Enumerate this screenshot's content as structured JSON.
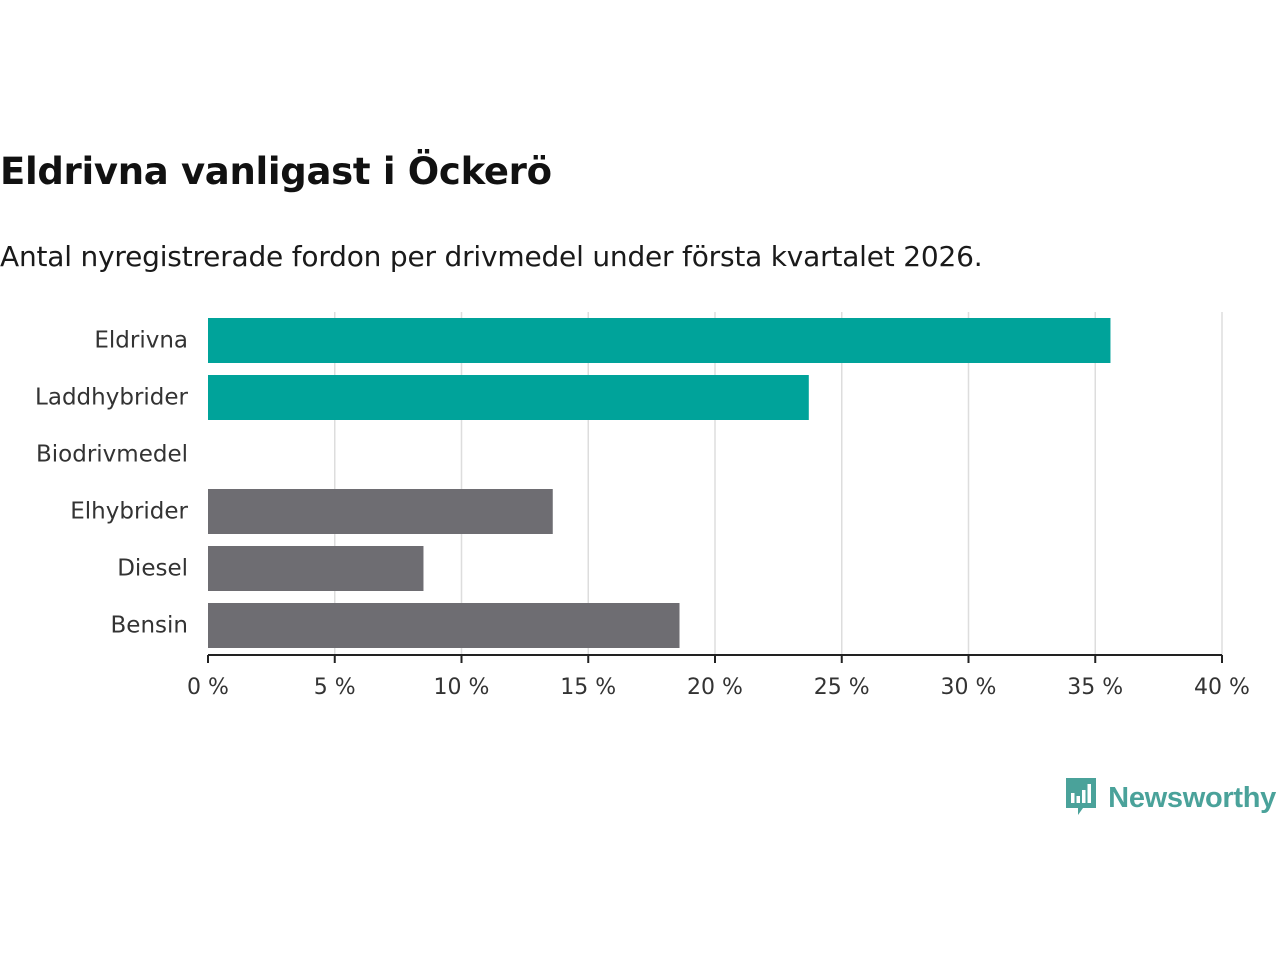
{
  "header": {
    "title": "Eldrivna vanligast i Öckerö",
    "subtitle": "Antal nyregistrerade fordon per drivmedel under första kvartalet 2026."
  },
  "brand": {
    "name": "Newsworthy",
    "color": "#4aa29a"
  },
  "colors": {
    "highlight": "#00a39a",
    "neutral": "#6e6d72",
    "grid": "#dddddd",
    "axis": "#222222"
  },
  "chart_data": {
    "type": "bar",
    "orientation": "horizontal",
    "title": "Eldrivna vanligast i Öckerö",
    "subtitle": "Antal nyregistrerade fordon per drivmedel under första kvartalet 2026.",
    "categories": [
      "Eldrivna",
      "Laddhybrider",
      "Biodrivmedel",
      "Elhybrider",
      "Diesel",
      "Bensin"
    ],
    "values": [
      35.6,
      23.7,
      0,
      13.6,
      8.5,
      18.6
    ],
    "highlight": [
      true,
      true,
      true,
      false,
      false,
      false
    ],
    "unit": "%",
    "xlim": [
      0,
      40
    ],
    "xticks": [
      0,
      5,
      10,
      15,
      20,
      25,
      30,
      35,
      40
    ],
    "xtick_labels": [
      "0 %",
      "5 %",
      "10 %",
      "15 %",
      "20 %",
      "25 %",
      "30 %",
      "35 %",
      "40 %"
    ],
    "xlabel": "",
    "ylabel": "",
    "grid": true,
    "legend": "none"
  }
}
